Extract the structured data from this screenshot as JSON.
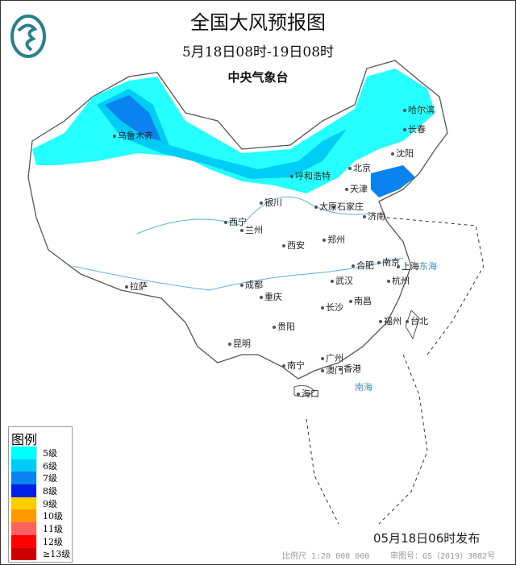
{
  "header": {
    "title": "全国大风预报图",
    "period": "5月18日08时-19日08时",
    "issuer": "中央气象台"
  },
  "legend": {
    "title": "图例",
    "items": [
      {
        "label": "5级",
        "color": "#00ffff"
      },
      {
        "label": "6级",
        "color": "#00ccf5"
      },
      {
        "label": "7级",
        "color": "#0a82f0"
      },
      {
        "label": "8级",
        "color": "#0020e6"
      },
      {
        "label": "9级",
        "color": "#ffcc00"
      },
      {
        "label": "10级",
        "color": "#ff9900"
      },
      {
        "label": "11级",
        "color": "#ff6060"
      },
      {
        "label": "12级",
        "color": "#ff0000"
      },
      {
        "label": "≥13级",
        "color": "#cc0000"
      }
    ]
  },
  "cities": [
    "乌鲁木齐",
    "哈尔滨",
    "长春",
    "沈阳",
    "北京",
    "天津",
    "呼和浩特",
    "石家庄",
    "太原",
    "济南",
    "银川",
    "西宁",
    "兰州",
    "西安",
    "郑州",
    "合肥",
    "南京",
    "上海",
    "杭州",
    "武汉",
    "成都",
    "拉萨",
    "重庆",
    "长沙",
    "南昌",
    "福州",
    "台北",
    "贵阳",
    "昆明",
    "广州",
    "南宁",
    "澳门",
    "香港",
    "海口"
  ],
  "seas": [
    "东海",
    "南海"
  ],
  "footer": {
    "issued": "05月18日06时发布",
    "scale": "比例尺 1:20 000 000",
    "approval": "审图号：GS（2019）3082号"
  }
}
